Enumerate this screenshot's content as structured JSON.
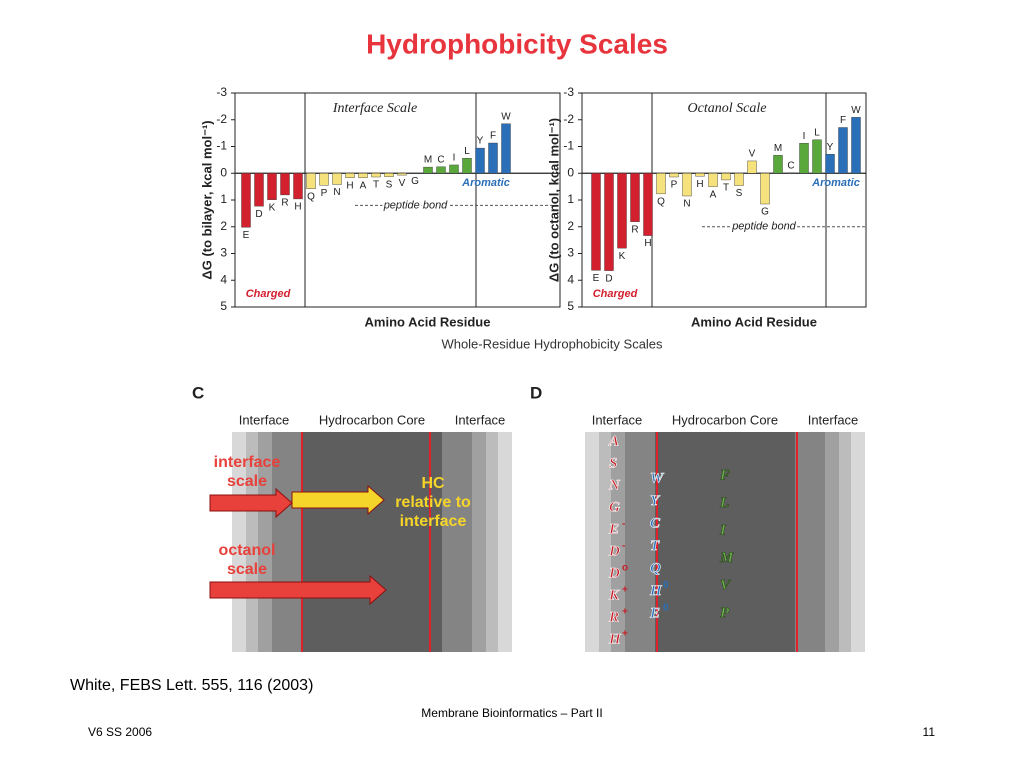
{
  "title": "Hydrophobicity Scales",
  "chart_data": [
    {
      "type": "bar",
      "title": "Interface Scale",
      "y_label": "ΔG (to bilayer, kcal mol⁻¹)",
      "x_label": "Amino Acid Residue",
      "categories": [
        "E",
        "D",
        "K",
        "R",
        "H",
        "Q",
        "P",
        "N",
        "H",
        "A",
        "T",
        "S",
        "V",
        "G",
        "M",
        "C",
        "I",
        "L",
        "Y",
        "F",
        "W"
      ],
      "values": [
        2.02,
        1.23,
        0.99,
        0.81,
        0.96,
        0.58,
        0.45,
        0.42,
        0.17,
        0.17,
        0.14,
        0.13,
        0.07,
        0.01,
        -0.23,
        -0.24,
        -0.31,
        -0.56,
        -0.94,
        -1.13,
        -1.85
      ],
      "colors": [
        "#d3202f",
        "#d3202f",
        "#d3202f",
        "#d3202f",
        "#d3202f",
        "#f6e27c",
        "#f6e27c",
        "#f6e27c",
        "#f6e27c",
        "#f6e27c",
        "#f6e27c",
        "#f6e27c",
        "#f6e27c",
        "#f6e27c",
        "#5aa83c",
        "#5aa83c",
        "#5aa83c",
        "#5aa83c",
        "#2a6fb8",
        "#2a6fb8",
        "#2a6fb8"
      ],
      "ylim": [
        -3,
        5
      ],
      "inverted": true,
      "yticks": [
        -3,
        -2,
        -1,
        0,
        1,
        2,
        3,
        4,
        5
      ],
      "reference_line": {
        "label": "peptide bond",
        "value": 1.2
      },
      "annotations": [
        {
          "text": "Aromatic",
          "color": "#2a6fb8"
        },
        {
          "text": "Charged",
          "color": "#d3202f"
        }
      ]
    },
    {
      "type": "bar",
      "title": "Octanol Scale",
      "y_label": "ΔG (to octanol, kcal mol⁻¹)",
      "x_label": "Amino Acid Residue",
      "categories": [
        "E",
        "D",
        "K",
        "R",
        "H",
        "Q",
        "P",
        "N",
        "H",
        "A",
        "T",
        "S",
        "V",
        "G",
        "M",
        "C",
        "I",
        "L",
        "Y",
        "F",
        "W"
      ],
      "values": [
        3.63,
        3.64,
        2.8,
        1.81,
        2.33,
        0.77,
        0.14,
        0.85,
        0.11,
        0.5,
        0.25,
        0.46,
        -0.46,
        1.15,
        -0.67,
        -0.02,
        -1.12,
        -1.25,
        -0.71,
        -1.71,
        -2.09
      ],
      "colors": [
        "#d3202f",
        "#d3202f",
        "#d3202f",
        "#d3202f",
        "#d3202f",
        "#f6e27c",
        "#f6e27c",
        "#f6e27c",
        "#f6e27c",
        "#f6e27c",
        "#f6e27c",
        "#f6e27c",
        "#f6e27c",
        "#f6e27c",
        "#5aa83c",
        "#5aa83c",
        "#5aa83c",
        "#5aa83c",
        "#2a6fb8",
        "#2a6fb8",
        "#2a6fb8"
      ],
      "ylim": [
        -3,
        5
      ],
      "inverted": true,
      "yticks": [
        -3,
        -2,
        -1,
        0,
        1,
        2,
        3,
        4,
        5
      ],
      "reference_line": {
        "label": "peptide bond",
        "value": 2.0
      },
      "annotations": [
        {
          "text": "Aromatic",
          "color": "#2a6fb8"
        },
        {
          "text": "Charged",
          "color": "#d3202f"
        }
      ]
    }
  ],
  "figure_caption": "Whole-Residue Hydrophobicity Scales",
  "panel_c": {
    "label": "C",
    "headers": [
      "Interface",
      "Hydrocarbon Core",
      "Interface"
    ],
    "texts": [
      "interface scale",
      "HC relative to interface",
      "octanol scale"
    ]
  },
  "panel_d": {
    "label": "D",
    "headers": [
      "Interface",
      "Hydrocarbon Core",
      "Interface"
    ],
    "interface": [
      {
        "letter": "A"
      },
      {
        "letter": "S"
      },
      {
        "letter": "N"
      },
      {
        "letter": "G"
      },
      {
        "letter": "E",
        "charge": "-"
      },
      {
        "letter": "D",
        "charge": "-"
      },
      {
        "letter": "D",
        "charge": "o"
      },
      {
        "letter": "K",
        "charge": "+"
      },
      {
        "letter": "R",
        "charge": "+"
      },
      {
        "letter": "H",
        "charge": "+"
      }
    ],
    "boundary": [
      {
        "letter": "W"
      },
      {
        "letter": "Y"
      },
      {
        "letter": "C"
      },
      {
        "letter": "T"
      },
      {
        "letter": "Q"
      },
      {
        "letter": "H",
        "charge": "0"
      },
      {
        "letter": "E",
        "charge": "0"
      }
    ],
    "core": [
      {
        "letter": "F"
      },
      {
        "letter": "L"
      },
      {
        "letter": "I"
      },
      {
        "letter": "M"
      },
      {
        "letter": "V"
      },
      {
        "letter": "P"
      }
    ]
  },
  "citation": "White, FEBS Lett. 555, 116 (2003)",
  "footer": {
    "center": "Membrane Bioinformatics – Part II",
    "left": "V6 SS 2006",
    "right": "11"
  }
}
